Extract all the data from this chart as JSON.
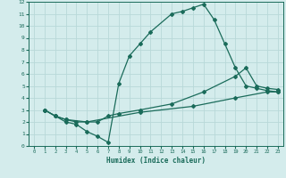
{
  "xlabel": "Humidex (Indice chaleur)",
  "bg_color": "#d4ecec",
  "grid_color": "#b8d8d8",
  "line_color": "#1a6b5a",
  "xlim": [
    -0.5,
    23.5
  ],
  "ylim": [
    0,
    12
  ],
  "xticks": [
    0,
    1,
    2,
    3,
    4,
    5,
    6,
    7,
    8,
    9,
    10,
    11,
    12,
    13,
    14,
    15,
    16,
    17,
    18,
    19,
    20,
    21,
    22,
    23
  ],
  "yticks": [
    0,
    1,
    2,
    3,
    4,
    5,
    6,
    7,
    8,
    9,
    10,
    11,
    12
  ],
  "line1_x": [
    1,
    2,
    3,
    4,
    5,
    6,
    7,
    8,
    9,
    10,
    11,
    13,
    14,
    15,
    16,
    17,
    18,
    19,
    20,
    21,
    22,
    23
  ],
  "line1_y": [
    3.0,
    2.5,
    2.0,
    1.8,
    1.2,
    0.8,
    0.3,
    5.2,
    7.5,
    8.5,
    9.5,
    11.0,
    11.2,
    11.5,
    11.8,
    10.5,
    8.5,
    6.5,
    5.0,
    4.8,
    4.6,
    4.5
  ],
  "line2_x": [
    1,
    2,
    3,
    4,
    5,
    6,
    7,
    8,
    10,
    13,
    16,
    19,
    20,
    21,
    22,
    23
  ],
  "line2_y": [
    3.0,
    2.5,
    2.2,
    2.0,
    2.0,
    2.0,
    2.5,
    2.7,
    3.0,
    3.5,
    4.5,
    5.8,
    6.5,
    5.0,
    4.8,
    4.7
  ],
  "line3_x": [
    1,
    2,
    3,
    5,
    10,
    15,
    19,
    22,
    23
  ],
  "line3_y": [
    3.0,
    2.5,
    2.2,
    2.0,
    2.8,
    3.3,
    4.0,
    4.5,
    4.5
  ],
  "marker": "D",
  "markersize": 2,
  "linewidth": 0.9
}
